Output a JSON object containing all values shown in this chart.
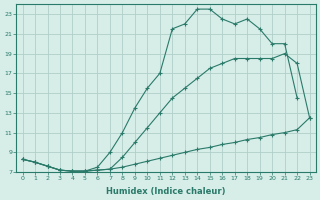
{
  "xlabel": "Humidex (Indice chaleur)",
  "bg_color": "#d6ede8",
  "grid_color": "#b0d0c8",
  "line_color": "#2a7a6a",
  "xlim": [
    -0.5,
    23.5
  ],
  "ylim": [
    7,
    24
  ],
  "xticks": [
    0,
    1,
    2,
    3,
    4,
    5,
    6,
    7,
    8,
    9,
    10,
    11,
    12,
    13,
    14,
    15,
    16,
    17,
    18,
    19,
    20,
    21,
    22,
    23
  ],
  "yticks": [
    7,
    9,
    11,
    13,
    15,
    17,
    19,
    21,
    23
  ],
  "line1_x": [
    0,
    1,
    2,
    3,
    4,
    5,
    6,
    7,
    8,
    9,
    10,
    11,
    12,
    13,
    14,
    15,
    16,
    17,
    18,
    19,
    20,
    21,
    22,
    23
  ],
  "line1_y": [
    8.3,
    8.0,
    7.6,
    7.2,
    7.1,
    7.1,
    7.2,
    7.3,
    7.5,
    7.8,
    8.1,
    8.4,
    8.7,
    9.0,
    9.3,
    9.5,
    9.8,
    10.0,
    10.3,
    10.5,
    10.8,
    11.0,
    11.3,
    12.5
  ],
  "line2_x": [
    0,
    1,
    2,
    3,
    4,
    5,
    6,
    7,
    8,
    9,
    10,
    11,
    12,
    13,
    14,
    15,
    16,
    17,
    18,
    19,
    20,
    21,
    22,
    23
  ],
  "line2_y": [
    8.3,
    8.0,
    7.6,
    7.2,
    7.1,
    7.1,
    7.2,
    7.3,
    8.5,
    10.0,
    11.5,
    13.0,
    14.5,
    15.5,
    16.5,
    17.5,
    18.0,
    18.5,
    18.5,
    18.5,
    18.5,
    19.0,
    18.0,
    12.5
  ],
  "line3_x": [
    0,
    1,
    2,
    3,
    4,
    5,
    6,
    7,
    8,
    9,
    10,
    11,
    12,
    13,
    14,
    15,
    16,
    17,
    18,
    19,
    20,
    21,
    22
  ],
  "line3_y": [
    8.3,
    8.0,
    7.6,
    7.2,
    7.1,
    7.1,
    7.5,
    9.0,
    11.0,
    13.5,
    15.5,
    17.0,
    21.5,
    22.0,
    23.5,
    23.5,
    22.5,
    22.0,
    22.5,
    21.5,
    20.0,
    20.0,
    14.5
  ]
}
